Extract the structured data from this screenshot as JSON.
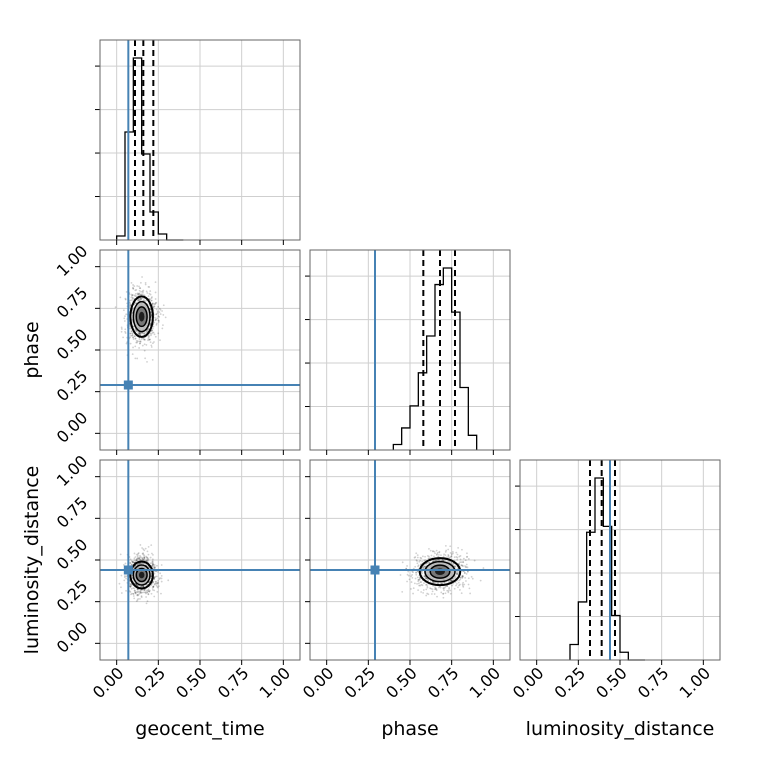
{
  "chart_data": {
    "type": "corner",
    "parameters": [
      "geocent_time",
      "phase",
      "luminosity_distance"
    ],
    "axis_range": [
      -0.1,
      1.1
    ],
    "tick_labels": [
      "0.00",
      "0.25",
      "0.50",
      "0.75",
      "1.00"
    ],
    "tick_values": [
      0.0,
      0.25,
      0.5,
      0.75,
      1.0
    ],
    "grid": true,
    "injection_color": "#4682b4",
    "truths": {
      "geocent_time": 0.07,
      "phase": 0.29,
      "luminosity_distance": 0.44
    },
    "histograms": {
      "geocent_time": {
        "bins": [
          0.0,
          0.05,
          0.1,
          0.15,
          0.2,
          0.25,
          0.3,
          0.35,
          0.4
        ],
        "counts": [
          2,
          54,
          91,
          43,
          14,
          3,
          0,
          0
        ],
        "quantiles": [
          0.11,
          0.16,
          0.22
        ]
      },
      "phase": {
        "bins": [
          0.4,
          0.45,
          0.5,
          0.55,
          0.6,
          0.65,
          0.7,
          0.75,
          0.8,
          0.85,
          0.9
        ],
        "counts": [
          3,
          12,
          24,
          42,
          62,
          90,
          99,
          75,
          34,
          8
        ],
        "quantiles": [
          0.58,
          0.68,
          0.77
        ]
      },
      "luminosity_distance": {
        "bins": [
          0.2,
          0.25,
          0.3,
          0.35,
          0.4,
          0.45,
          0.5,
          0.55,
          0.6,
          0.65
        ],
        "counts": [
          8,
          30,
          66,
          94,
          69,
          23,
          4,
          0,
          0
        ],
        "quantiles": [
          0.32,
          0.39,
          0.47
        ]
      }
    },
    "contours_2d": [
      {
        "x": "geocent_time",
        "y": "phase",
        "center": [
          0.15,
          0.7
        ],
        "spread": [
          0.05,
          0.09
        ]
      },
      {
        "x": "geocent_time",
        "y": "luminosity_distance",
        "center": [
          0.15,
          0.41
        ],
        "spread": [
          0.05,
          0.06
        ]
      },
      {
        "x": "phase",
        "y": "luminosity_distance",
        "center": [
          0.68,
          0.43
        ],
        "spread": [
          0.09,
          0.06
        ]
      }
    ]
  }
}
